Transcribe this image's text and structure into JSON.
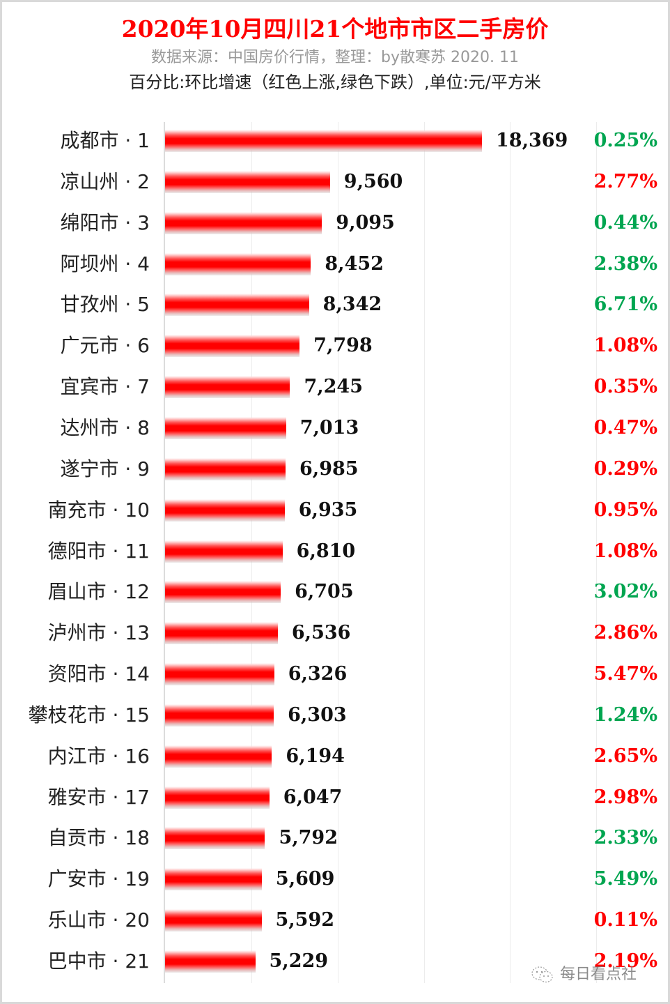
{
  "header": {
    "title": "2020年10月四川21个地市市区二手房价",
    "subtitle": "数据来源：中国房价行情，整理：by散寒苏 2020. 11",
    "note": "百分比:环比增速（红色上涨,绿色下跌）,单位:元/平方米"
  },
  "colors": {
    "bar": "#ff0000",
    "up": "#ff0000",
    "down": "#00a550",
    "title": "#ff0000",
    "subtitle": "#999999"
  },
  "watermark": {
    "icon": "wechat-icon",
    "text": "每日看点社"
  },
  "chart_data": {
    "type": "bar",
    "orientation": "horizontal",
    "title": "2020年10月四川21个地市市区二手房价",
    "subtitle": "数据来源：中国房价行情，整理：by散寒苏 2020. 11",
    "annotation": "百分比:环比增速（红色上涨,绿色下跌）,单位:元/平方米",
    "xlabel": "",
    "ylabel": "",
    "unit": "元/平方米",
    "xlim": [
      0,
      25000
    ],
    "grid": true,
    "grid_step": 5000,
    "legend": null,
    "categories": [
      "成都市 · 1",
      "凉山州 · 2",
      "绵阳市 · 3",
      "阿坝州 · 4",
      "甘孜州 · 5",
      "广元市 · 6",
      "宜宾市 · 7",
      "达州市 · 8",
      "遂宁市 · 9",
      "南充市 · 10",
      "德阳市 · 11",
      "眉山市 · 12",
      "泸州市 · 13",
      "资阳市 · 14",
      "攀枝花市 · 15",
      "内江市 · 16",
      "雅安市 · 17",
      "自贡市 · 18",
      "广安市 · 19",
      "乐山市 · 20",
      "巴中市 · 21"
    ],
    "values": [
      18369,
      9560,
      9095,
      8452,
      8342,
      7798,
      7245,
      7013,
      6985,
      6935,
      6810,
      6705,
      6536,
      6326,
      6303,
      6194,
      6047,
      5792,
      5609,
      5592,
      5229
    ],
    "value_labels": [
      "18,369",
      "9,560",
      "9,095",
      "8,452",
      "8,342",
      "7,798",
      "7,245",
      "7,013",
      "6,985",
      "6,935",
      "6,810",
      "6,705",
      "6,536",
      "6,326",
      "6,303",
      "6,194",
      "6,047",
      "5,792",
      "5,609",
      "5,592",
      "5,229"
    ],
    "mom_change": [
      "0.25%",
      "2.77%",
      "0.44%",
      "2.38%",
      "6.71%",
      "1.08%",
      "0.35%",
      "0.47%",
      "0.29%",
      "0.95%",
      "1.08%",
      "3.02%",
      "2.86%",
      "5.47%",
      "1.24%",
      "2.65%",
      "2.98%",
      "2.33%",
      "5.49%",
      "0.11%",
      "2.19%"
    ],
    "mom_direction": [
      "down",
      "up",
      "down",
      "down",
      "down",
      "up",
      "up",
      "up",
      "up",
      "up",
      "up",
      "down",
      "up",
      "up",
      "down",
      "up",
      "up",
      "down",
      "down",
      "up",
      "up"
    ]
  }
}
